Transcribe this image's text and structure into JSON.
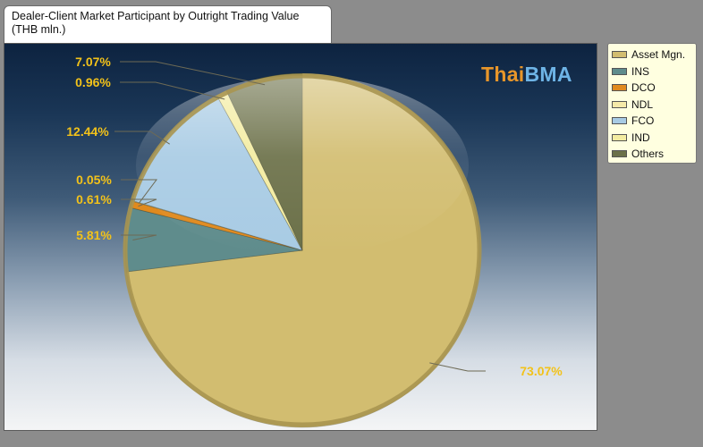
{
  "title_line1": "Dealer-Client Market Participant by Outright Trading Value",
  "title_line2": "(THB mln.)",
  "logo": {
    "part1": "Thai",
    "part2": "BMA"
  },
  "chart_data": {
    "type": "pie",
    "title": "Dealer-Client Market Participant by Outright Trading Value (THB mln.)",
    "legend_position": "right",
    "slices": [
      {
        "label": "Asset Mgn.",
        "value": 73.07,
        "display": "73.07%",
        "color": "#d2bd70"
      },
      {
        "label": "INS",
        "value": 5.81,
        "display": "5.81%",
        "color": "#5f8c8c"
      },
      {
        "label": "DCO",
        "value": 0.61,
        "display": "0.61%",
        "color": "#e08a1e"
      },
      {
        "label": "NDL",
        "value": 0.05,
        "display": "0.05%",
        "color": "#f5e9a8"
      },
      {
        "label": "FCO",
        "value": 12.44,
        "display": "12.44%",
        "color": "#a8cbe4"
      },
      {
        "label": "IND",
        "value": 0.96,
        "display": "0.96%",
        "color": "#f3eca0"
      },
      {
        "label": "Others",
        "value": 7.07,
        "display": "7.07%",
        "color": "#6b7048"
      }
    ]
  }
}
